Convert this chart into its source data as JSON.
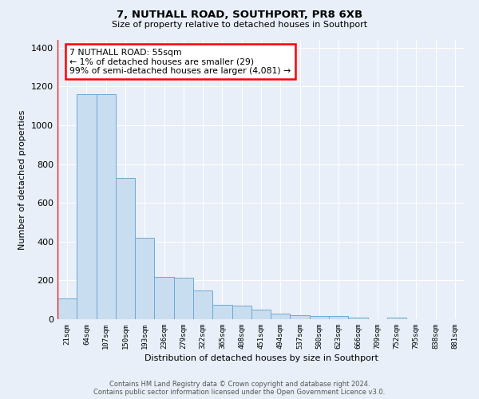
{
  "title": "7, NUTHALL ROAD, SOUTHPORT, PR8 6XB",
  "subtitle": "Size of property relative to detached houses in Southport",
  "xlabel": "Distribution of detached houses by size in Southport",
  "ylabel": "Number of detached properties",
  "bar_labels": [
    "21sqm",
    "64sqm",
    "107sqm",
    "150sqm",
    "193sqm",
    "236sqm",
    "279sqm",
    "322sqm",
    "365sqm",
    "408sqm",
    "451sqm",
    "494sqm",
    "537sqm",
    "580sqm",
    "623sqm",
    "666sqm",
    "709sqm",
    "752sqm",
    "795sqm",
    "838sqm",
    "881sqm"
  ],
  "bar_values": [
    105,
    1160,
    1160,
    730,
    420,
    220,
    215,
    150,
    75,
    68,
    48,
    30,
    20,
    18,
    15,
    10,
    0,
    10,
    0,
    0,
    0
  ],
  "bar_color": "#c8ddf0",
  "bar_edge_color": "#6aaad4",
  "annotation_text_line1": "7 NUTHALL ROAD: 55sqm",
  "annotation_text_line2": "← 1% of detached houses are smaller (29)",
  "annotation_text_line3": "99% of semi-detached houses are larger (4,081) →",
  "ylim": [
    0,
    1440
  ],
  "yticks": [
    0,
    200,
    400,
    600,
    800,
    1000,
    1200,
    1400
  ],
  "background_color": "#e8eff8",
  "plot_bg_color": "#e8eff8",
  "footer_line1": "Contains HM Land Registry data © Crown copyright and database right 2024.",
  "footer_line2": "Contains public sector information licensed under the Open Government Licence v3.0."
}
